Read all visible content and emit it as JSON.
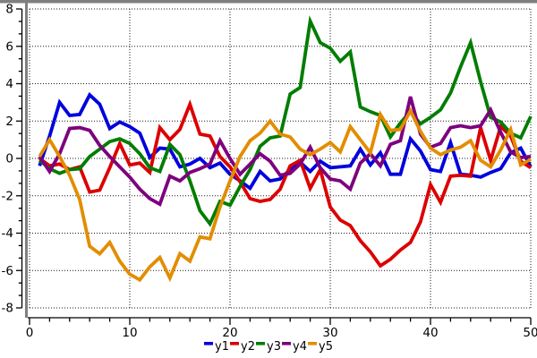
{
  "chart_data": {
    "type": "line",
    "title": "",
    "xlabel": "",
    "ylabel": "",
    "xlim": [
      0,
      50
    ],
    "ylim": [
      -8,
      8
    ],
    "x_ticks": [
      0,
      10,
      20,
      30,
      40,
      50
    ],
    "y_ticks": [
      -8,
      -6,
      -4,
      -2,
      0,
      2,
      4,
      6,
      8
    ],
    "x_minor_step": 2,
    "y_minor_divisions": 3,
    "grid": "dotted",
    "legend_position": "bottom-center",
    "x": [
      1,
      2,
      3,
      4,
      5,
      6,
      7,
      8,
      9,
      10,
      11,
      12,
      13,
      14,
      15,
      16,
      17,
      18,
      19,
      20,
      21,
      22,
      23,
      24,
      25,
      26,
      27,
      28,
      29,
      30,
      31,
      32,
      33,
      34,
      35,
      36,
      37,
      38,
      39,
      40,
      41,
      42,
      43,
      44,
      45,
      46,
      47,
      48,
      49,
      50
    ],
    "series": [
      {
        "name": "y1",
        "color": "#0000DD",
        "values": [
          -0.4,
          1.2,
          3.0,
          2.3,
          2.35,
          3.4,
          2.9,
          1.6,
          1.95,
          1.7,
          1.35,
          0.05,
          0.55,
          0.5,
          -0.45,
          -0.3,
          0.0,
          -0.5,
          -0.25,
          -0.85,
          -1.2,
          -1.6,
          -0.7,
          -1.2,
          -1.1,
          -0.6,
          -0.2,
          -0.7,
          -0.15,
          -0.5,
          -0.45,
          -0.4,
          0.5,
          -0.35,
          0.3,
          -0.85,
          -0.85,
          1.05,
          0.4,
          -0.6,
          -0.7,
          0.85,
          -0.85,
          -0.9,
          -1.0,
          -0.75,
          -0.55,
          0.3,
          0.55,
          -0.45
        ]
      },
      {
        "name": "y2",
        "color": "#DC0000",
        "values": [
          0.0,
          -0.4,
          -0.3,
          -0.6,
          -0.45,
          -1.8,
          -1.7,
          -0.5,
          0.8,
          -0.35,
          -0.25,
          -0.75,
          1.65,
          1.0,
          1.55,
          2.9,
          1.3,
          1.2,
          0.1,
          -0.45,
          -1.25,
          -2.15,
          -2.3,
          -2.2,
          -1.65,
          -0.4,
          -0.1,
          -1.6,
          -0.6,
          -2.6,
          -3.3,
          -3.6,
          -4.4,
          -5.0,
          -5.75,
          -5.4,
          -4.9,
          -4.5,
          -3.4,
          -1.4,
          -2.35,
          -0.95,
          -0.9,
          -0.95,
          1.65,
          -0.1,
          1.7,
          1.2,
          -0.15,
          -0.5
        ]
      },
      {
        "name": "y3",
        "color": "#007D00",
        "values": [
          -0.1,
          -0.55,
          -0.8,
          -0.6,
          -0.55,
          0.1,
          0.5,
          0.9,
          1.05,
          0.8,
          0.25,
          -0.5,
          -0.7,
          0.75,
          0.2,
          -1.2,
          -2.8,
          -3.5,
          -2.3,
          -2.5,
          -1.5,
          -0.6,
          0.65,
          1.1,
          1.2,
          3.45,
          3.8,
          7.35,
          6.2,
          5.9,
          5.2,
          5.7,
          2.75,
          2.5,
          2.3,
          1.15,
          1.9,
          2.5,
          1.85,
          2.2,
          2.6,
          3.5,
          4.9,
          6.2,
          4.1,
          2.2,
          1.95,
          1.35,
          1.1,
          2.25
        ]
      },
      {
        "name": "y4",
        "color": "#7D007D",
        "values": [
          0.1,
          -0.7,
          0.25,
          1.6,
          1.65,
          1.5,
          0.7,
          0.1,
          -0.45,
          -1.0,
          -1.65,
          -2.15,
          -2.45,
          -0.95,
          -1.2,
          -0.75,
          -0.55,
          -0.3,
          0.95,
          0.0,
          -0.85,
          -0.3,
          0.25,
          -0.15,
          -0.9,
          -0.8,
          -0.3,
          0.6,
          -0.5,
          -1.1,
          -1.2,
          -1.65,
          -0.25,
          0.25,
          -0.4,
          0.75,
          0.95,
          3.3,
          1.3,
          0.6,
          0.8,
          1.65,
          1.75,
          1.65,
          1.75,
          2.6,
          1.4,
          0.35,
          0.05,
          0.1
        ]
      },
      {
        "name": "y5",
        "color": "#E28D00",
        "values": [
          0.1,
          1.0,
          0.1,
          -0.9,
          -2.2,
          -4.7,
          -5.1,
          -4.5,
          -5.5,
          -6.2,
          -6.5,
          -5.8,
          -5.3,
          -6.4,
          -5.1,
          -5.5,
          -4.2,
          -4.3,
          -2.6,
          -1.2,
          0.1,
          0.95,
          1.35,
          2.0,
          1.3,
          1.15,
          0.5,
          0.2,
          0.5,
          0.85,
          0.35,
          1.7,
          1.0,
          0.3,
          2.35,
          1.5,
          1.55,
          2.55,
          1.45,
          0.55,
          0.2,
          0.45,
          0.6,
          0.95,
          -0.1,
          -0.45,
          0.45,
          1.55,
          -0.35,
          -0.05
        ]
      }
    ],
    "legend_labels": [
      "y1",
      "y2",
      "y3",
      "y4",
      "y5"
    ]
  },
  "frame": {
    "background": "#ffffff",
    "top_border_color": "#7f7f7f",
    "left_border_color": "#7f7f7f",
    "axis_color": "#000000",
    "grid_color": "#1a1a1a",
    "tick_label_color": "#000000"
  }
}
